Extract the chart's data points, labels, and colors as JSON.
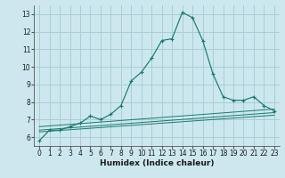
{
  "xlabel": "Humidex (Indice chaleur)",
  "bg_color": "#cce8ee",
  "grid_color": "#aacdd6",
  "line_color": "#1a7a6e",
  "xlim": [
    -0.5,
    23.5
  ],
  "ylim": [
    5.5,
    13.5
  ],
  "xticks": [
    0,
    1,
    2,
    3,
    4,
    5,
    6,
    7,
    8,
    9,
    10,
    11,
    12,
    13,
    14,
    15,
    16,
    17,
    18,
    19,
    20,
    21,
    22,
    23
  ],
  "yticks": [
    6,
    7,
    8,
    9,
    10,
    11,
    12,
    13
  ],
  "series": [
    [
      0,
      5.8
    ],
    [
      1,
      6.4
    ],
    [
      2,
      6.4
    ],
    [
      3,
      6.6
    ],
    [
      4,
      6.8
    ],
    [
      5,
      7.2
    ],
    [
      6,
      7.0
    ],
    [
      7,
      7.3
    ],
    [
      8,
      7.8
    ],
    [
      9,
      9.2
    ],
    [
      10,
      9.7
    ],
    [
      11,
      10.5
    ],
    [
      12,
      11.5
    ],
    [
      13,
      11.6
    ],
    [
      14,
      13.1
    ],
    [
      15,
      12.8
    ],
    [
      16,
      11.5
    ],
    [
      17,
      9.6
    ],
    [
      18,
      8.3
    ],
    [
      19,
      8.1
    ],
    [
      20,
      8.1
    ],
    [
      21,
      8.3
    ],
    [
      22,
      7.8
    ],
    [
      23,
      7.5
    ]
  ],
  "flat_lines": [
    [
      [
        0,
        6.6
      ],
      [
        23,
        7.6
      ]
    ],
    [
      [
        0,
        6.4
      ],
      [
        23,
        7.4
      ]
    ],
    [
      [
        0,
        6.3
      ],
      [
        23,
        7.25
      ]
    ]
  ]
}
